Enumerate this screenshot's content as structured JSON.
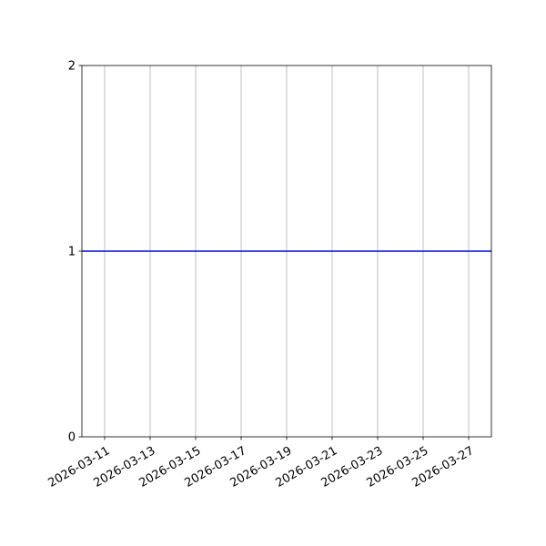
{
  "chart_data": {
    "type": "line",
    "title": "",
    "xlabel": "",
    "ylabel": "",
    "x_scale": "date",
    "xlim": [
      "2026-03-10",
      "2026-03-28"
    ],
    "ylim": [
      0,
      2
    ],
    "x_ticks": [
      "2026-03-11",
      "2026-03-13",
      "2026-03-15",
      "2026-03-17",
      "2026-03-19",
      "2026-03-21",
      "2026-03-23",
      "2026-03-25",
      "2026-03-27"
    ],
    "y_ticks": [
      "0",
      "1",
      "2"
    ],
    "grid": {
      "x": true,
      "y": false
    },
    "series": [
      {
        "color": "#0000ff",
        "x": [
          "2026-03-10",
          "2026-03-28"
        ],
        "y": [
          1,
          1
        ]
      }
    ]
  }
}
